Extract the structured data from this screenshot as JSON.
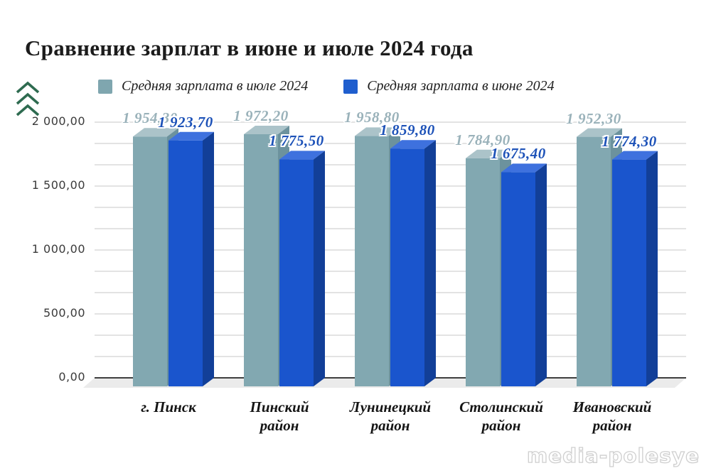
{
  "title": "Сравнение зарплат в июне и июле 2024 года",
  "legend": [
    {
      "label": "Средняя зарплата в июле 2024",
      "color": "#7FA6AF"
    },
    {
      "label": "Средняя зарплата в июне 2024",
      "color": "#1F5ECE"
    }
  ],
  "watermark": "media-polesye",
  "icons": {
    "top_left": "triple-up-chevrons",
    "chevron_color": "#2E6B50"
  },
  "chart_data": {
    "type": "bar",
    "title": "Сравнение зарплат в июне и июле 2024 года",
    "categories": [
      "г. Пинск",
      "Пинский район",
      "Лунинецкий район",
      "Столинский район",
      "Ивановский район"
    ],
    "category_lines": [
      [
        "г. Пинск"
      ],
      [
        "Пинский",
        "район"
      ],
      [
        "Лунинецкий",
        "район"
      ],
      [
        "Столинский",
        "район"
      ],
      [
        "Ивановский",
        "район"
      ]
    ],
    "series": [
      {
        "name": "Средняя зарплата в июле 2024",
        "values": [
          1954.3,
          1972.2,
          1958.8,
          1784.9,
          1952.3
        ],
        "labels": [
          "1 954,30",
          "1 972,20",
          "1 958,80",
          "1 784,90",
          "1 952,30"
        ],
        "colors": {
          "front": "#82A8B1",
          "top": "#ABC3C9",
          "side": "#6C929D",
          "label": "#9AB2BA"
        }
      },
      {
        "name": "Средняя зарплата в июне 2024",
        "values": [
          1923.7,
          1775.5,
          1859.8,
          1675.4,
          1774.3
        ],
        "labels": [
          "1 923,70",
          "1 775,50",
          "1 859,80",
          "1 675,40",
          "1 774,30"
        ],
        "colors": {
          "front": "#1A55CD",
          "top": "#3E71DE",
          "side": "#123F98",
          "label": "#1D52B8"
        }
      }
    ],
    "y_ticks": [
      "0,00",
      "500,00",
      "1 000,00",
      "1 500,00",
      "2 000,00"
    ],
    "y_tick_values": [
      0,
      500,
      1000,
      1500,
      2000
    ],
    "ylim": [
      0,
      2000
    ],
    "grid": true,
    "grid_color": "#dadada",
    "zero_axis_color": "#3f3f3f",
    "floor_color": "#ebebeb",
    "legend_position": "top",
    "style": "3d-bars"
  }
}
